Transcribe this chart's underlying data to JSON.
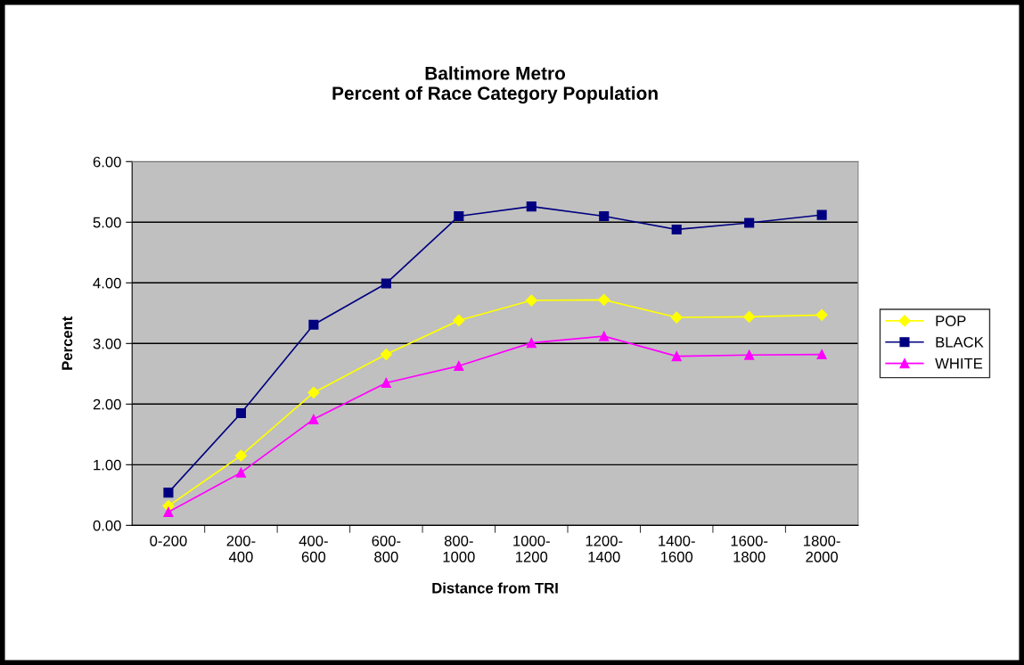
{
  "chart_data": {
    "type": "line",
    "title": "Baltimore Metro\nPercent of Race Category Population",
    "xlabel": "Distance from TRI",
    "ylabel": "Percent",
    "categories": [
      "0-200",
      "200-\n400",
      "400-\n600",
      "600-\n800",
      "800-\n1000",
      "1000-\n1200",
      "1200-\n1400",
      "1400-\n1600",
      "1600-\n1800",
      "1800-\n2000"
    ],
    "series": [
      {
        "name": "POP",
        "color": "#ffff00",
        "marker": "diamond",
        "values": [
          0.32,
          1.15,
          2.19,
          2.82,
          3.38,
          3.71,
          3.72,
          3.43,
          3.44,
          3.47
        ]
      },
      {
        "name": "BLACK",
        "color": "#000080",
        "marker": "square",
        "values": [
          0.54,
          1.85,
          3.31,
          3.99,
          5.1,
          5.26,
          5.1,
          4.88,
          4.99,
          5.12
        ]
      },
      {
        "name": "WHITE",
        "color": "#ff00ff",
        "marker": "triangle",
        "values": [
          0.22,
          0.87,
          1.75,
          2.35,
          2.63,
          3.01,
          3.12,
          2.79,
          2.81,
          2.82
        ]
      }
    ],
    "ylim": [
      0,
      6
    ],
    "yticks": [
      {
        "value": 0,
        "label": "0.00"
      },
      {
        "value": 1,
        "label": "1.00"
      },
      {
        "value": 2,
        "label": "2.00"
      },
      {
        "value": 3,
        "label": "3.00"
      },
      {
        "value": 4,
        "label": "4.00"
      },
      {
        "value": 5,
        "label": "5.00"
      },
      {
        "value": 6,
        "label": "6.00"
      }
    ],
    "grid": "y",
    "legend": "right",
    "line_style": "solid"
  }
}
